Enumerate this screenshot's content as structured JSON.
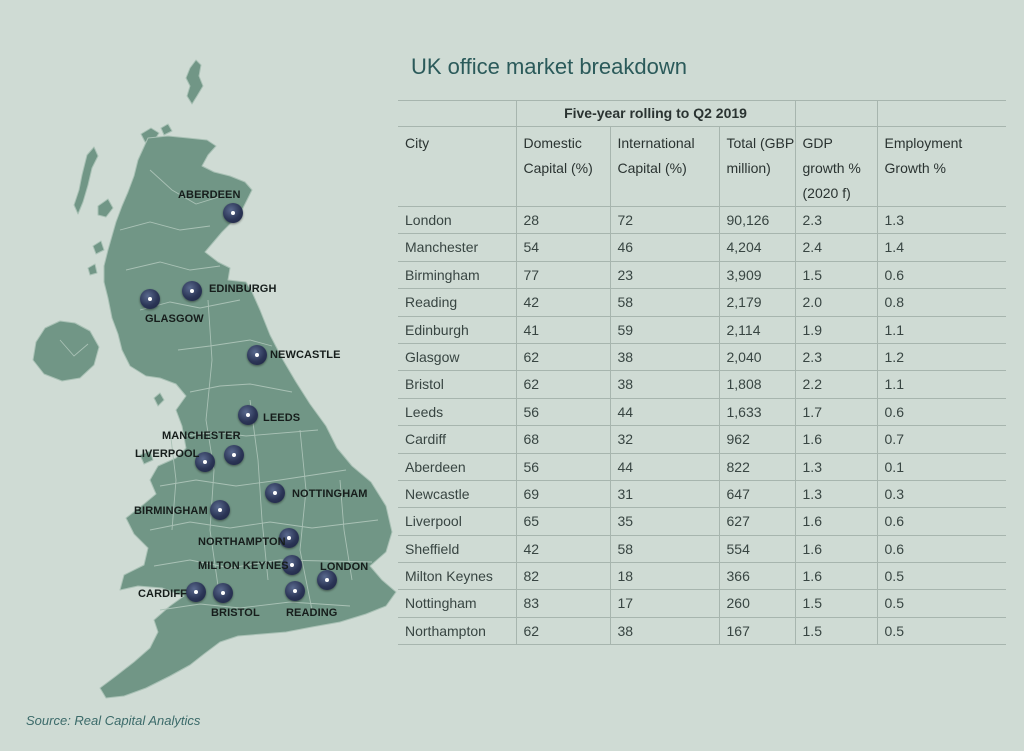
{
  "title": "UK office market breakdown",
  "source": "Source: Real Capital Analytics",
  "colors": {
    "background": "#cfdbd4",
    "land": "#719686",
    "border": "#a9c1b5",
    "marker": "#2b3556",
    "title": "#2b5a5a"
  },
  "table": {
    "group_header": "Five-year rolling to Q2 2019",
    "columns": [
      {
        "key": "city",
        "label": "City"
      },
      {
        "key": "domestic",
        "label": "Domestic Capital (%)"
      },
      {
        "key": "international",
        "label": "International Capital (%)"
      },
      {
        "key": "total",
        "label": "Total (GBP million)"
      },
      {
        "key": "gdp",
        "label": "GDP growth % (2020 f)"
      },
      {
        "key": "employment",
        "label": "Employment Growth %"
      }
    ],
    "rows": [
      [
        "London",
        "28",
        "72",
        "90,126",
        "2.3",
        "1.3"
      ],
      [
        "Manchester",
        "54",
        "46",
        "4,204",
        "2.4",
        "1.4"
      ],
      [
        "Birmingham",
        "77",
        "23",
        "3,909",
        "1.5",
        "0.6"
      ],
      [
        "Reading",
        "42",
        "58",
        "2,179",
        "2.0",
        "0.8"
      ],
      [
        "Edinburgh",
        "41",
        "59",
        "2,114",
        "1.9",
        "1.1"
      ],
      [
        "Glasgow",
        "62",
        "38",
        "2,040",
        "2.3",
        "1.2"
      ],
      [
        "Bristol",
        "62",
        "38",
        "1,808",
        "2.2",
        "1.1"
      ],
      [
        "Leeds",
        "56",
        "44",
        "1,633",
        "1.7",
        "0.6"
      ],
      [
        "Cardiff",
        "68",
        "32",
        "962",
        "1.6",
        "0.7"
      ],
      [
        "Aberdeen",
        "56",
        "44",
        "822",
        "1.3",
        "0.1"
      ],
      [
        "Newcastle",
        "69",
        "31",
        "647",
        "1.3",
        "0.3"
      ],
      [
        "Liverpool",
        "65",
        "35",
        "627",
        "1.6",
        "0.6"
      ],
      [
        "Sheffield",
        "42",
        "58",
        "554",
        "1.6",
        "0.6"
      ],
      [
        "Milton Keynes",
        "82",
        "18",
        "366",
        "1.6",
        "0.5"
      ],
      [
        "Nottingham",
        "83",
        "17",
        "260",
        "1.5",
        "0.5"
      ],
      [
        "Northampton",
        "62",
        "38",
        "167",
        "1.5",
        "0.5"
      ]
    ]
  },
  "map": {
    "cities": [
      {
        "id": "aberdeen",
        "label": "ABERDEEN"
      },
      {
        "id": "edinburgh",
        "label": "EDINBURGH"
      },
      {
        "id": "glasgow",
        "label": "GLASGOW"
      },
      {
        "id": "newcastle",
        "label": "NEWCASTLE"
      },
      {
        "id": "leeds",
        "label": "LEEDS"
      },
      {
        "id": "manchester",
        "label": "MANCHESTER"
      },
      {
        "id": "liverpool",
        "label": "LIVERPOOL"
      },
      {
        "id": "nottingham",
        "label": "NOTTINGHAM"
      },
      {
        "id": "birmingham",
        "label": "BIRMINGHAM"
      },
      {
        "id": "northampton",
        "label": "NORTHAMPTON"
      },
      {
        "id": "milton-keynes",
        "label": "MILTON KEYNES"
      },
      {
        "id": "london",
        "label": "LONDON"
      },
      {
        "id": "cardiff",
        "label": "CARDIFF"
      },
      {
        "id": "bristol",
        "label": "BRISTOL"
      },
      {
        "id": "reading",
        "label": "READING"
      }
    ]
  }
}
